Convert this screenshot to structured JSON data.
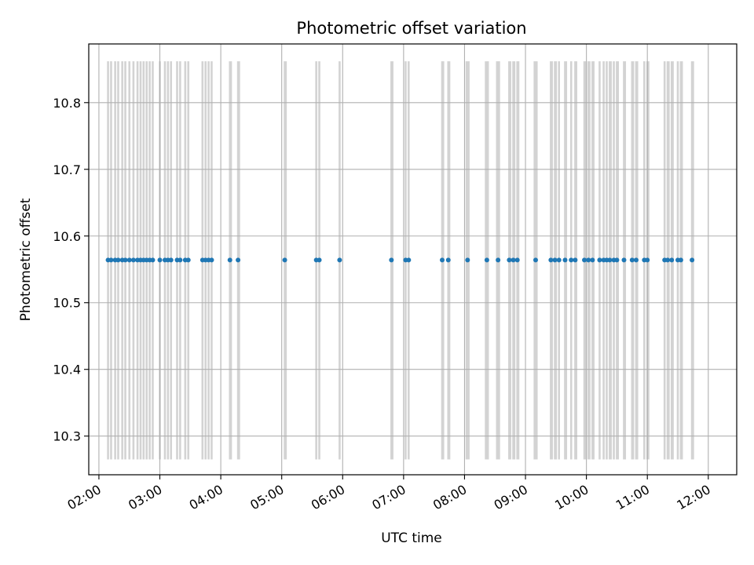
{
  "chart_data": {
    "type": "scatter",
    "title": "Photometric offset variation",
    "xlabel": "UTC time",
    "ylabel": "Photometric offset",
    "grid": true,
    "xlim": [
      "01:50",
      "12:28"
    ],
    "ylim": [
      10.242,
      10.888
    ],
    "x_ticks": [
      "02:00",
      "03:00",
      "04:00",
      "05:00",
      "06:00",
      "07:00",
      "08:00",
      "09:00",
      "10:00",
      "11:00",
      "12:00"
    ],
    "y_ticks": [
      10.3,
      10.4,
      10.5,
      10.6,
      10.7,
      10.8
    ],
    "band_range": [
      10.265,
      10.862
    ],
    "colors": {
      "points": "#1f77b4",
      "bands": "#d3d3d3",
      "grid": "#b0b0b0"
    },
    "bands": [
      [
        "02:08",
        "02:10"
      ],
      [
        "02:11",
        "02:13"
      ],
      [
        "02:15",
        "02:17"
      ],
      [
        "02:18",
        "02:20"
      ],
      [
        "02:22",
        "02:24"
      ],
      [
        "02:25",
        "02:27"
      ],
      [
        "02:29",
        "02:31"
      ],
      [
        "02:33",
        "02:35"
      ],
      [
        "02:37",
        "02:39"
      ],
      [
        "02:40",
        "02:42"
      ],
      [
        "02:43",
        "02:45"
      ],
      [
        "02:46",
        "02:48"
      ],
      [
        "02:49",
        "02:51"
      ],
      [
        "02:52",
        "02:54"
      ],
      [
        "02:59",
        "03:01"
      ],
      [
        "03:04",
        "03:06"
      ],
      [
        "03:07",
        "03:09"
      ],
      [
        "03:10",
        "03:12"
      ],
      [
        "03:16",
        "03:18"
      ],
      [
        "03:19",
        "03:21"
      ],
      [
        "03:24",
        "03:26"
      ],
      [
        "03:27",
        "03:29"
      ],
      [
        "03:41",
        "03:43"
      ],
      [
        "03:44",
        "03:46"
      ],
      [
        "03:47",
        "03:49"
      ],
      [
        "03:50",
        "03:52"
      ],
      [
        "04:08",
        "04:11"
      ],
      [
        "04:16",
        "04:19"
      ],
      [
        "05:02",
        "05:05"
      ],
      [
        "05:33",
        "05:35"
      ],
      [
        "05:36",
        "05:38"
      ],
      [
        "05:56",
        "05:58"
      ],
      [
        "06:47",
        "06:50"
      ],
      [
        "07:01",
        "07:03"
      ],
      [
        "07:04",
        "07:06"
      ],
      [
        "07:37",
        "07:40"
      ],
      [
        "07:43",
        "07:46"
      ],
      [
        "08:01",
        "08:05"
      ],
      [
        "08:20",
        "08:24"
      ],
      [
        "08:31",
        "08:35"
      ],
      [
        "08:43",
        "08:46"
      ],
      [
        "08:47",
        "08:50"
      ],
      [
        "08:51",
        "08:54"
      ],
      [
        "09:08",
        "09:12"
      ],
      [
        "09:24",
        "09:27"
      ],
      [
        "09:28",
        "09:31"
      ],
      [
        "09:32",
        "09:34"
      ],
      [
        "09:38",
        "09:41"
      ],
      [
        "09:44",
        "09:46"
      ],
      [
        "09:48",
        "09:51"
      ],
      [
        "09:57",
        "10:00"
      ],
      [
        "10:01",
        "10:04"
      ],
      [
        "10:05",
        "10:08"
      ],
      [
        "10:12",
        "10:14"
      ],
      [
        "10:16",
        "10:18"
      ],
      [
        "10:19",
        "10:21"
      ],
      [
        "10:22",
        "10:25"
      ],
      [
        "10:26",
        "10:28"
      ],
      [
        "10:29",
        "10:32"
      ],
      [
        "10:36",
        "10:39"
      ],
      [
        "10:44",
        "10:47"
      ],
      [
        "10:48",
        "10:51"
      ],
      [
        "10:56",
        "10:58"
      ],
      [
        "10:59",
        "11:02"
      ],
      [
        "11:16",
        "11:18"
      ],
      [
        "11:19",
        "11:22"
      ],
      [
        "11:23",
        "11:26"
      ],
      [
        "11:29",
        "11:31"
      ],
      [
        "11:32",
        "11:35"
      ],
      [
        "11:43",
        "11:46"
      ]
    ],
    "points": {
      "x": [
        "02:09",
        "02:12",
        "02:16",
        "02:19",
        "02:23",
        "02:26",
        "02:30",
        "02:34",
        "02:38",
        "02:41",
        "02:44",
        "02:47",
        "02:50",
        "02:53",
        "03:00",
        "03:05",
        "03:08",
        "03:11",
        "03:17",
        "03:20",
        "03:25",
        "03:28",
        "03:42",
        "03:45",
        "03:48",
        "03:51",
        "04:09",
        "04:17",
        "05:03",
        "05:34",
        "05:37",
        "05:57",
        "06:48",
        "07:02",
        "07:05",
        "07:38",
        "07:44",
        "08:03",
        "08:22",
        "08:33",
        "08:44",
        "08:48",
        "08:52",
        "09:10",
        "09:25",
        "09:29",
        "09:33",
        "09:39",
        "09:45",
        "09:49",
        "09:58",
        "10:02",
        "10:06",
        "10:13",
        "10:17",
        "10:20",
        "10:23",
        "10:27",
        "10:30",
        "10:37",
        "10:45",
        "10:49",
        "10:57",
        "11:00",
        "11:17",
        "11:20",
        "11:24",
        "11:30",
        "11:33",
        "11:44"
      ],
      "y": [
        10.564,
        10.564,
        10.564,
        10.564,
        10.564,
        10.564,
        10.564,
        10.564,
        10.564,
        10.564,
        10.564,
        10.564,
        10.564,
        10.564,
        10.564,
        10.564,
        10.564,
        10.564,
        10.564,
        10.564,
        10.564,
        10.564,
        10.564,
        10.564,
        10.564,
        10.564,
        10.564,
        10.564,
        10.564,
        10.564,
        10.564,
        10.564,
        10.564,
        10.564,
        10.564,
        10.564,
        10.564,
        10.564,
        10.564,
        10.564,
        10.564,
        10.564,
        10.564,
        10.564,
        10.564,
        10.564,
        10.564,
        10.564,
        10.564,
        10.564,
        10.564,
        10.564,
        10.564,
        10.564,
        10.564,
        10.564,
        10.564,
        10.564,
        10.564,
        10.564,
        10.564,
        10.564,
        10.564,
        10.564,
        10.564,
        10.564,
        10.564,
        10.564,
        10.564,
        10.564
      ]
    }
  }
}
